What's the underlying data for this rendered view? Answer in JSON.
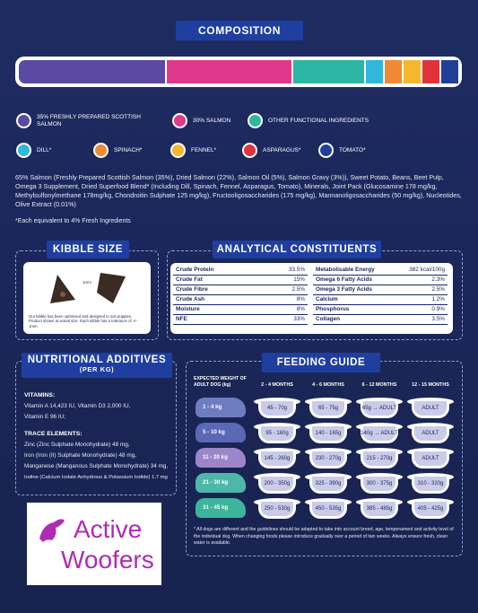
{
  "composition": {
    "title": "COMPOSITION",
    "colors": {
      "salmon_scottish": "#5b4aa3",
      "salmon": "#e0398c",
      "other": "#2db6a3",
      "dill": "#2fb7dc",
      "spinach": "#f08a32",
      "fennel": "#f4b72d",
      "asparagus": "#e0343a",
      "tomato": "#223f98"
    },
    "bar_fractions": [
      0.35,
      0.3,
      0.17,
      0.04,
      0.04,
      0.04,
      0.04,
      0.04
    ],
    "legend": [
      {
        "label": "35% FRESHLY PREPARED SCOTTISH SALMON",
        "color": "#5b4aa3"
      },
      {
        "label": "30% SALMON",
        "color": "#e0398c"
      },
      {
        "label": "OTHER FUNCTIONAL INGREDIENTS",
        "color": "#2db6a3"
      },
      {
        "label": "DILL*",
        "color": "#2fb7dc"
      },
      {
        "label": "SPINACH*",
        "color": "#f08a32"
      },
      {
        "label": "FENNEL*",
        "color": "#f4b72d"
      },
      {
        "label": "ASPARAGUS*",
        "color": "#e0343a"
      },
      {
        "label": "TOMATO*",
        "color": "#223f98"
      }
    ],
    "ingredients": "65% Salmon (Freshly Prepared Scottish Salmon (35%), Dried Salmon (22%), Salmon Oil (5%), Salmon Gravy (3%)), Sweet Potato, Beans, Beet Pulp, Omega 3 Supplement, Dried Superfood Blend* (Including Dill, Spinach, Fennel, Asparagus, Tomato), Minerals, Joint Pack (Glucosamine 178 mg/kg, Methylsulfonylmethane 178mg/kg, Chondroitin Sulphate 125 mg/kg), Fructooligosaccharides (175 mg/kg), Mannanoligosaccharides (50 mg/kg), Nucleotides, Olive Extract (0.01%)",
    "footnote": "*Each equivalent to 4% Fresh Ingredients"
  },
  "kibble": {
    "title": "KIBBLE SIZE",
    "size_label": "1mm",
    "note": "Our kibble has been optimised and designed to suit puppies. Product shown at actual size. Each kibble has a tolerance of +/- 1mm."
  },
  "analytical": {
    "title": "ANALYTICAL CONSTITUENTS",
    "left": [
      {
        "name": "Crude Protein",
        "value": "33.5%"
      },
      {
        "name": "Crude Fat",
        "value": "15%"
      },
      {
        "name": "Crude Fibre",
        "value": "2.5%"
      },
      {
        "name": "Crude Ash",
        "value": "8%"
      },
      {
        "name": "Moisture",
        "value": "8%"
      },
      {
        "name": "NFE",
        "value": "33%"
      }
    ],
    "right": [
      {
        "name": "Metabolisable Energy",
        "value": "382 kcal/100g"
      },
      {
        "name": "Omega 6 Fatty Acids",
        "value": "2.3%"
      },
      {
        "name": "Omega 3 Fatty Acids",
        "value": "2.5%"
      },
      {
        "name": "Calcium",
        "value": "1.2%"
      },
      {
        "name": "Phosphorus",
        "value": "0.9%"
      },
      {
        "name": "Collagen",
        "value": "3.5%"
      }
    ]
  },
  "nutritional": {
    "title": "NUTRITIONAL ADDITIVES",
    "subtitle": "(PER KG)",
    "vitamins_heading": "VITAMINS:",
    "vitamins": [
      "Vitamin A 14,423 IU, Vitamin D3 2,000 IU,",
      "Vitamin E 96 IU;"
    ],
    "trace_heading": "TRACE ELEMENTS:",
    "trace": [
      "Zinc (Zinc Sulphate Monohydrate) 48 mg,",
      "Iron (Iron (II) Sulphate Monohydrate) 48 mg,",
      "Manganese (Manganous Sulphate Monohydrate) 34 mg,",
      "Iodine (Calcium Iodate Anhydrous & Potassium Iodide) 1.7 mg"
    ]
  },
  "feeding": {
    "title": "FEEDING GUIDE",
    "weight_header": "EXPECTED WEIGHT OF ADULT DOG (kg)",
    "columns": [
      "2 - 4 MONTHS",
      "4 - 6 MONTHS",
      "6 - 12 MONTHS",
      "12 - 15 MONTHS"
    ],
    "rows": [
      {
        "weight": "1 - 4 kg",
        "color": "#6e7cc0",
        "values": [
          "45 - 70g",
          "65 - 75g",
          "65g → ADULT",
          "ADULT"
        ]
      },
      {
        "weight": "5 - 10 kg",
        "color": "#5a68b5",
        "values": [
          "95 - 160g",
          "140 - 165g",
          "140g → ADULT",
          "ADULT"
        ]
      },
      {
        "weight": "11 - 20 kg",
        "color": "#9c86c9",
        "values": [
          "145 - 260g",
          "230 - 270g",
          "215 - 270g",
          "ADULT"
        ]
      },
      {
        "weight": "21 - 30 kg",
        "color": "#4fb7a9",
        "values": [
          "200 - 350g",
          "325 - 390g",
          "300 - 375g",
          "310 - 320g"
        ]
      },
      {
        "weight": "31 - 45 kg",
        "color": "#3bb59b",
        "values": [
          "250 - 530g",
          "450 - 535g",
          "385 - 485g",
          "405 - 425g"
        ]
      }
    ],
    "note": "* All dogs are different and the guidelines should be adapted to take into account breed, age, temperament and activity level of the individual dog. When changing foods please introduce gradually over a period of two weeks. Always ensure fresh, clean water is available."
  },
  "logo": {
    "text1": "Active",
    "text2": "Woofers",
    "color": "#b02bb5"
  }
}
